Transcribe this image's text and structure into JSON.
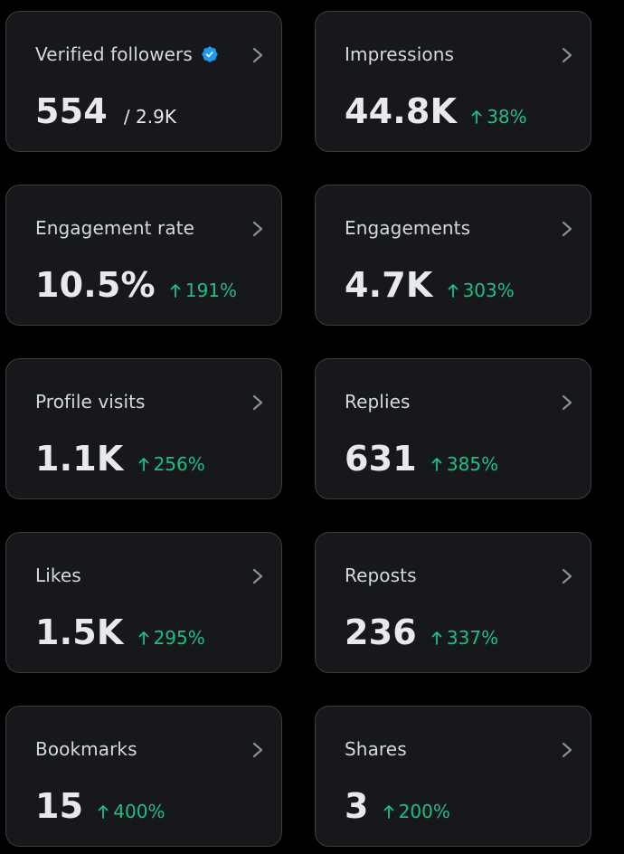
{
  "cards": [
    {
      "label": "Verified followers",
      "value": "554",
      "sub": "/ 2.9K",
      "verified": true
    },
    {
      "label": "Impressions",
      "value": "44.8K",
      "change": "38%"
    },
    {
      "label": "Engagement rate",
      "value": "10.5%",
      "change": "191%"
    },
    {
      "label": "Engagements",
      "value": "4.7K",
      "change": "303%"
    },
    {
      "label": "Profile visits",
      "value": "1.1K",
      "change": "256%"
    },
    {
      "label": "Replies",
      "value": "631",
      "change": "385%"
    },
    {
      "label": "Likes",
      "value": "1.5K",
      "change": "295%"
    },
    {
      "label": "Reposts",
      "value": "236",
      "change": "337%"
    },
    {
      "label": "Bookmarks",
      "value": "15",
      "change": "400%"
    },
    {
      "label": "Shares",
      "value": "3",
      "change": "200%"
    }
  ],
  "colors": {
    "positive_change": "#1fbf82",
    "verified_badge": "#1d9bf0",
    "card_background": "#16181c"
  },
  "icons": {
    "verified": "verified-badge-icon",
    "chevron": "chevron-right-icon",
    "arrow": "arrow-up-icon"
  }
}
